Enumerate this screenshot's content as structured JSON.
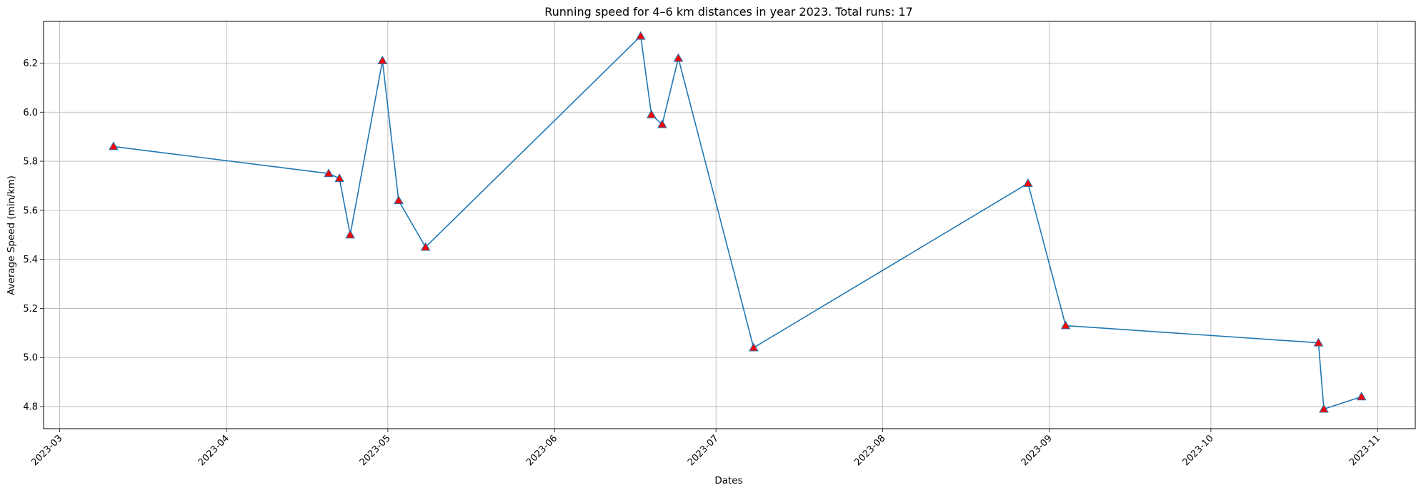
{
  "chart_data": {
    "type": "line",
    "title": "Running speed for 4–6 km distances in year 2023. Total runs: 17",
    "xlabel": "Dates",
    "ylabel": "Average Speed (min/km)",
    "x_ticks": [
      "2023-03",
      "2023-04",
      "2023-05",
      "2023-06",
      "2023-07",
      "2023-08",
      "2023-09",
      "2023-10",
      "2023-11"
    ],
    "y_ticks": [
      "4.8",
      "5.0",
      "5.2",
      "5.4",
      "5.6",
      "5.8",
      "6.0",
      "6.2"
    ],
    "xlim": [
      "2023-02-26",
      "2023-11-08"
    ],
    "ylim": [
      4.71,
      6.37
    ],
    "grid": true,
    "line_color": "#1f77b4",
    "marker": "triangle",
    "marker_color": "#ff0000",
    "marker_edge_color": "#1f77b4",
    "series": [
      {
        "x": [
          "2023-03-11",
          "2023-04-20",
          "2023-04-22",
          "2023-04-24",
          "2023-04-30",
          "2023-05-03",
          "2023-05-08",
          "2023-06-17",
          "2023-06-19",
          "2023-06-21",
          "2023-06-24",
          "2023-07-08",
          "2023-08-28",
          "2023-09-04",
          "2023-10-21",
          "2023-10-22",
          "2023-10-29"
        ],
        "values": [
          5.86,
          5.75,
          5.73,
          5.5,
          6.21,
          5.64,
          5.45,
          6.31,
          5.99,
          5.95,
          6.22,
          5.04,
          5.71,
          5.13,
          5.06,
          4.79,
          4.84
        ]
      }
    ]
  }
}
